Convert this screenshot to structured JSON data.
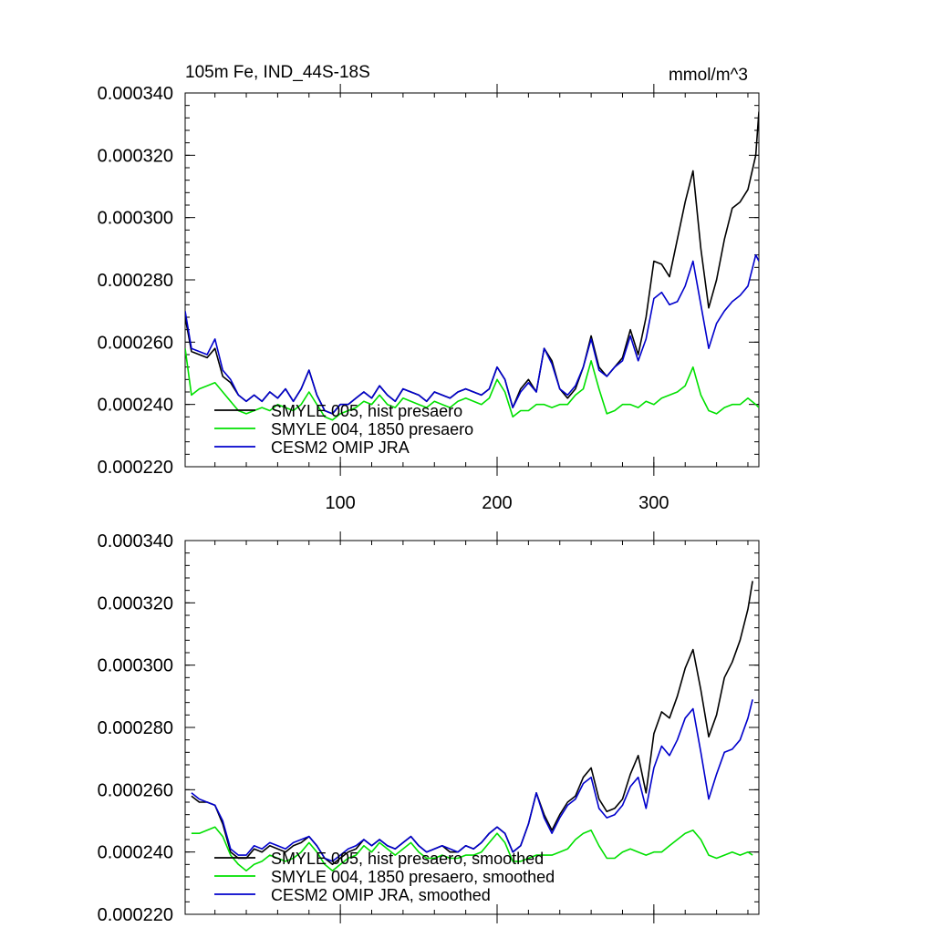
{
  "figure": {
    "title_left": "105m Fe, IND_44S-18S",
    "title_right": "mmol/m^3"
  },
  "colors": {
    "series1": "#000000",
    "series2": "#00e000",
    "series3": "#0000cc"
  },
  "chart_data": [
    {
      "type": "line",
      "title": "105m Fe, IND_44S-18S",
      "units": "mmol/m^3",
      "xlim": [
        1,
        367
      ],
      "ylim": [
        0.00022,
        0.00034
      ],
      "x_ticks": [
        100,
        200,
        300
      ],
      "x_tick_labels": [
        "100",
        "200",
        "300"
      ],
      "y_ticks": [
        0.00022,
        0.00024,
        0.00026,
        0.00028,
        0.0003,
        0.00032,
        0.00034
      ],
      "y_tick_labels": [
        "0.000220",
        "0.000240",
        "0.000260",
        "0.000280",
        "0.000300",
        "0.000320",
        "0.000340"
      ],
      "legend_position": "bottom-left",
      "series": [
        {
          "name": "SMYLE 005, hist presaero",
          "color": "#000000",
          "x": [
            1,
            5,
            10,
            15,
            20,
            25,
            30,
            35,
            40,
            45,
            50,
            55,
            60,
            65,
            70,
            75,
            80,
            85,
            90,
            95,
            100,
            105,
            110,
            115,
            120,
            125,
            130,
            135,
            140,
            145,
            150,
            155,
            160,
            165,
            170,
            175,
            180,
            185,
            190,
            195,
            200,
            205,
            210,
            215,
            220,
            225,
            230,
            235,
            240,
            245,
            250,
            255,
            260,
            265,
            270,
            275,
            280,
            285,
            290,
            295,
            300,
            305,
            310,
            315,
            320,
            325,
            330,
            335,
            340,
            345,
            350,
            355,
            360,
            365,
            367
          ],
          "values": [
            0.000268,
            0.000257,
            0.000256,
            0.000255,
            0.000258,
            0.000249,
            0.000247,
            0.000243,
            0.000241,
            0.000243,
            0.000241,
            0.000244,
            0.000242,
            0.000245,
            0.000241,
            0.000245,
            0.000251,
            0.000243,
            0.000238,
            0.000237,
            0.00024,
            0.00024,
            0.000242,
            0.000244,
            0.000242,
            0.000246,
            0.000243,
            0.000241,
            0.000245,
            0.000244,
            0.000243,
            0.000241,
            0.000244,
            0.000243,
            0.000242,
            0.000244,
            0.000245,
            0.000244,
            0.000243,
            0.000245,
            0.000252,
            0.000248,
            0.000239,
            0.000245,
            0.000248,
            0.000244,
            0.000258,
            0.000254,
            0.000245,
            0.000242,
            0.000245,
            0.000252,
            0.000262,
            0.000252,
            0.000249,
            0.000252,
            0.000255,
            0.000264,
            0.000256,
            0.000268,
            0.000286,
            0.000285,
            0.000281,
            0.000293,
            0.000305,
            0.000315,
            0.00029,
            0.000271,
            0.00028,
            0.000293,
            0.000303,
            0.000305,
            0.000309,
            0.00032,
            0.000334
          ],
          "legend_label": "SMYLE 005, hist presaero"
        },
        {
          "name": "SMYLE 004, 1850 presaero",
          "color": "#00e000",
          "x": [
            1,
            5,
            10,
            15,
            20,
            25,
            30,
            35,
            40,
            45,
            50,
            55,
            60,
            65,
            70,
            75,
            80,
            85,
            90,
            95,
            100,
            105,
            110,
            115,
            120,
            125,
            130,
            135,
            140,
            145,
            150,
            155,
            160,
            165,
            170,
            175,
            180,
            185,
            190,
            195,
            200,
            205,
            210,
            215,
            220,
            225,
            230,
            235,
            240,
            245,
            250,
            255,
            260,
            265,
            270,
            275,
            280,
            285,
            290,
            295,
            300,
            305,
            310,
            315,
            320,
            325,
            330,
            335,
            340,
            345,
            350,
            355,
            360,
            365,
            367
          ],
          "values": [
            0.000258,
            0.000243,
            0.000245,
            0.000246,
            0.000247,
            0.000244,
            0.000241,
            0.000238,
            0.000237,
            0.000238,
            0.000239,
            0.000238,
            0.00024,
            0.000239,
            0.000238,
            0.00024,
            0.000244,
            0.00024,
            0.000236,
            0.000235,
            0.000237,
            0.000238,
            0.000239,
            0.000241,
            0.00024,
            0.000243,
            0.00024,
            0.000239,
            0.000242,
            0.000241,
            0.00024,
            0.000239,
            0.000241,
            0.00024,
            0.000239,
            0.000241,
            0.000242,
            0.000241,
            0.00024,
            0.000242,
            0.000248,
            0.000244,
            0.000236,
            0.000238,
            0.000238,
            0.00024,
            0.00024,
            0.000239,
            0.00024,
            0.00024,
            0.000243,
            0.000245,
            0.000254,
            0.000245,
            0.000237,
            0.000238,
            0.00024,
            0.00024,
            0.000239,
            0.000241,
            0.00024,
            0.000242,
            0.000243,
            0.000244,
            0.000246,
            0.000252,
            0.000243,
            0.000238,
            0.000237,
            0.000239,
            0.00024,
            0.00024,
            0.000242,
            0.00024,
            0.000239
          ],
          "legend_label": "SMYLE 004, 1850 presaero"
        },
        {
          "name": "CESM2 OMIP JRA",
          "color": "#0000cc",
          "x": [
            1,
            5,
            10,
            15,
            20,
            25,
            30,
            35,
            40,
            45,
            50,
            55,
            60,
            65,
            70,
            75,
            80,
            85,
            90,
            95,
            100,
            105,
            110,
            115,
            120,
            125,
            130,
            135,
            140,
            145,
            150,
            155,
            160,
            165,
            170,
            175,
            180,
            185,
            190,
            195,
            200,
            205,
            210,
            215,
            220,
            225,
            230,
            235,
            240,
            245,
            250,
            255,
            260,
            265,
            270,
            275,
            280,
            285,
            290,
            295,
            300,
            305,
            310,
            315,
            320,
            325,
            330,
            335,
            340,
            345,
            350,
            355,
            360,
            365,
            367
          ],
          "values": [
            0.00027,
            0.000258,
            0.000257,
            0.000256,
            0.000261,
            0.000251,
            0.000248,
            0.000243,
            0.000241,
            0.000243,
            0.000241,
            0.000244,
            0.000242,
            0.000245,
            0.000241,
            0.000245,
            0.000251,
            0.000243,
            0.000238,
            0.000237,
            0.00024,
            0.00024,
            0.000242,
            0.000244,
            0.000242,
            0.000246,
            0.000243,
            0.000241,
            0.000245,
            0.000244,
            0.000243,
            0.000241,
            0.000244,
            0.000243,
            0.000242,
            0.000244,
            0.000245,
            0.000244,
            0.000243,
            0.000245,
            0.000252,
            0.000248,
            0.000239,
            0.000244,
            0.000247,
            0.000244,
            0.000258,
            0.000253,
            0.000245,
            0.000243,
            0.000246,
            0.000252,
            0.000261,
            0.000251,
            0.000249,
            0.000252,
            0.000254,
            0.000262,
            0.000254,
            0.000261,
            0.000274,
            0.000276,
            0.000272,
            0.000273,
            0.000278,
            0.000286,
            0.000272,
            0.000258,
            0.000266,
            0.00027,
            0.000273,
            0.000275,
            0.000278,
            0.000288,
            0.000286
          ],
          "legend_label": "CESM2 OMIP JRA"
        }
      ]
    },
    {
      "type": "line",
      "title": "",
      "xlim": [
        1,
        367
      ],
      "ylim": [
        0.00022,
        0.00034
      ],
      "x_ticks": [
        100,
        200,
        300
      ],
      "x_tick_labels": [],
      "y_ticks": [
        0.00022,
        0.00024,
        0.00026,
        0.00028,
        0.0003,
        0.00032,
        0.00034
      ],
      "y_tick_labels": [
        "0.000220",
        "0.000240",
        "0.000260",
        "0.000280",
        "0.000300",
        "0.000320",
        "0.000340"
      ],
      "legend_position": "bottom-left",
      "series": [
        {
          "name": "SMYLE 005, hist presaero, smoothed",
          "color": "#000000",
          "x": [
            5,
            10,
            15,
            20,
            25,
            30,
            35,
            40,
            45,
            50,
            55,
            60,
            65,
            70,
            75,
            80,
            85,
            90,
            95,
            100,
            105,
            110,
            115,
            120,
            125,
            130,
            135,
            140,
            145,
            150,
            155,
            160,
            165,
            170,
            175,
            180,
            185,
            190,
            195,
            200,
            205,
            210,
            215,
            220,
            225,
            230,
            235,
            240,
            245,
            250,
            255,
            260,
            265,
            270,
            275,
            280,
            285,
            290,
            295,
            300,
            305,
            310,
            315,
            320,
            325,
            330,
            335,
            340,
            345,
            350,
            355,
            360,
            363
          ],
          "values": [
            0.000258,
            0.000256,
            0.000256,
            0.000255,
            0.000249,
            0.00024,
            0.000238,
            0.000238,
            0.000241,
            0.00024,
            0.000242,
            0.000241,
            0.00024,
            0.000242,
            0.000243,
            0.000245,
            0.000242,
            0.000238,
            0.000236,
            0.000238,
            0.00024,
            0.000241,
            0.000244,
            0.000242,
            0.000244,
            0.000242,
            0.000241,
            0.000243,
            0.000245,
            0.000242,
            0.00024,
            0.000241,
            0.000242,
            0.00024,
            0.00024,
            0.000242,
            0.000241,
            0.000243,
            0.000246,
            0.000248,
            0.000246,
            0.00024,
            0.000242,
            0.000249,
            0.000259,
            0.000252,
            0.000247,
            0.000252,
            0.000256,
            0.000258,
            0.000264,
            0.000267,
            0.000257,
            0.000253,
            0.000254,
            0.000257,
            0.000265,
            0.000271,
            0.000259,
            0.000278,
            0.000285,
            0.000283,
            0.00029,
            0.000299,
            0.000305,
            0.000292,
            0.000277,
            0.000284,
            0.000296,
            0.000301,
            0.000308,
            0.000318,
            0.000327
          ]
        },
        {
          "name": "SMYLE 004, 1850 presaero, smoothed",
          "color": "#00e000",
          "x": [
            5,
            10,
            15,
            20,
            25,
            30,
            35,
            40,
            45,
            50,
            55,
            60,
            65,
            70,
            75,
            80,
            85,
            90,
            95,
            100,
            105,
            110,
            115,
            120,
            125,
            130,
            135,
            140,
            145,
            150,
            155,
            160,
            165,
            170,
            175,
            180,
            185,
            190,
            195,
            200,
            205,
            210,
            215,
            220,
            225,
            230,
            235,
            240,
            245,
            250,
            255,
            260,
            265,
            270,
            275,
            280,
            285,
            290,
            295,
            300,
            305,
            310,
            315,
            320,
            325,
            330,
            335,
            340,
            345,
            350,
            355,
            360,
            363
          ],
          "values": [
            0.000246,
            0.000246,
            0.000247,
            0.000248,
            0.000245,
            0.000239,
            0.000236,
            0.000234,
            0.000236,
            0.000237,
            0.000239,
            0.000238,
            0.000237,
            0.000238,
            0.00024,
            0.000243,
            0.00024,
            0.000236,
            0.000234,
            0.000236,
            0.000238,
            0.000239,
            0.000242,
            0.00024,
            0.000243,
            0.000241,
            0.000239,
            0.000241,
            0.000243,
            0.00024,
            0.000238,
            0.000238,
            0.000239,
            0.000238,
            0.000238,
            0.000239,
            0.000239,
            0.00024,
            0.000243,
            0.000246,
            0.000243,
            0.000237,
            0.000237,
            0.000238,
            0.000239,
            0.000239,
            0.000239,
            0.00024,
            0.000241,
            0.000244,
            0.000246,
            0.000247,
            0.000242,
            0.000238,
            0.000238,
            0.00024,
            0.000241,
            0.00024,
            0.000239,
            0.00024,
            0.00024,
            0.000242,
            0.000244,
            0.000246,
            0.000247,
            0.000244,
            0.000239,
            0.000238,
            0.000239,
            0.00024,
            0.000239,
            0.00024,
            0.000239
          ]
        },
        {
          "name": "CESM2 OMIP JRA, smoothed",
          "color": "#0000cc",
          "x": [
            5,
            10,
            15,
            20,
            25,
            30,
            35,
            40,
            45,
            50,
            55,
            60,
            65,
            70,
            75,
            80,
            85,
            90,
            95,
            100,
            105,
            110,
            115,
            120,
            125,
            130,
            135,
            140,
            145,
            150,
            155,
            160,
            165,
            170,
            175,
            180,
            185,
            190,
            195,
            200,
            205,
            210,
            215,
            220,
            225,
            230,
            235,
            240,
            245,
            250,
            255,
            260,
            265,
            270,
            275,
            280,
            285,
            290,
            295,
            300,
            305,
            310,
            315,
            320,
            325,
            330,
            335,
            340,
            345,
            350,
            355,
            360,
            363
          ],
          "values": [
            0.000259,
            0.000257,
            0.000256,
            0.000255,
            0.00025,
            0.000241,
            0.000239,
            0.000239,
            0.000242,
            0.000241,
            0.000243,
            0.000242,
            0.000241,
            0.000243,
            0.000244,
            0.000245,
            0.000242,
            0.000238,
            0.000237,
            0.000239,
            0.000241,
            0.000242,
            0.000244,
            0.000242,
            0.000244,
            0.000242,
            0.000241,
            0.000243,
            0.000245,
            0.000242,
            0.00024,
            0.000241,
            0.000242,
            0.000241,
            0.00024,
            0.000242,
            0.000241,
            0.000243,
            0.000246,
            0.000248,
            0.000246,
            0.00024,
            0.000242,
            0.000249,
            0.000259,
            0.000251,
            0.000246,
            0.000251,
            0.000255,
            0.000257,
            0.000262,
            0.000264,
            0.000254,
            0.000251,
            0.000252,
            0.000255,
            0.000261,
            0.000264,
            0.000254,
            0.000267,
            0.000274,
            0.000271,
            0.000276,
            0.000283,
            0.000286,
            0.000272,
            0.000257,
            0.000265,
            0.000272,
            0.000273,
            0.000276,
            0.000283,
            0.000289
          ]
        }
      ],
      "legend": [
        "SMYLE 005, hist presaero, smoothed",
        "SMYLE 004, 1850 presaero, smoothed",
        "CESM2 OMIP JRA, smoothed"
      ]
    }
  ]
}
